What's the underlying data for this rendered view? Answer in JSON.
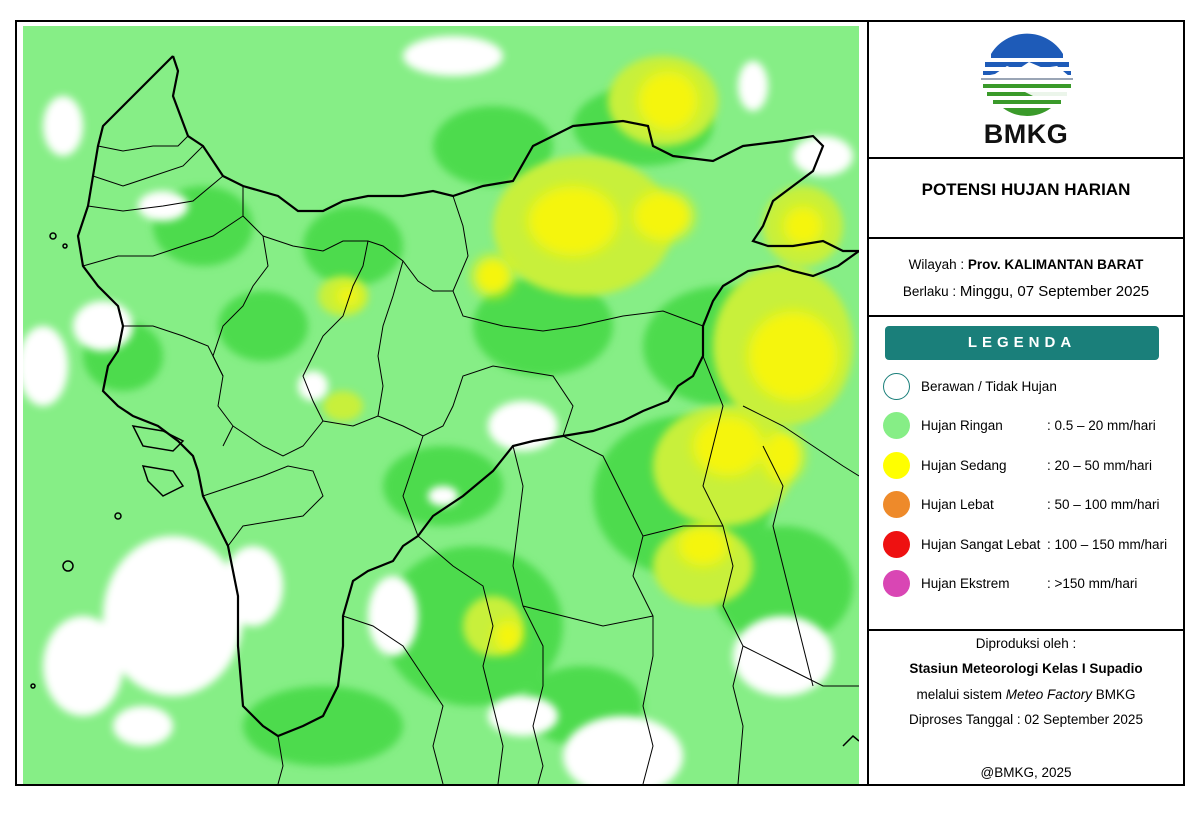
{
  "header": {
    "logo_text": "BMKG",
    "title": "POTENSI HUJAN HARIAN"
  },
  "info": {
    "wilayah_label": "Wilayah : ",
    "wilayah_value": "Prov. KALIMANTAN BARAT",
    "berlaku_label": "Berlaku : ",
    "berlaku_value": "Minggu, 07 September 2025"
  },
  "legend": {
    "title": "LEGENDA",
    "items": [
      {
        "label": "Berawan / Tidak Hujan",
        "range": "",
        "color": "#ffffff"
      },
      {
        "label": "Hujan Ringan",
        "range": ": 0.5 – 20 mm/hari",
        "color": "#86ee86"
      },
      {
        "label": "Hujan Sedang",
        "range": ": 20 – 50 mm/hari",
        "color": "#ffff00"
      },
      {
        "label": "Hujan Lebat",
        "range": ": 50 – 100 mm/hari",
        "color": "#ee8a2a"
      },
      {
        "label": "Hujan Sangat Lebat",
        "range": ": 100 – 150 mm/hari",
        "color": "#ee1111"
      },
      {
        "label": "Hujan Ekstrem",
        "range": ": >150 mm/hari",
        "color": "#d946b4"
      }
    ]
  },
  "credits": {
    "produced_by": "Diproduksi oleh :",
    "station": "Stasiun Meteorologi Kelas I Supadio",
    "system_prefix": "melalui sistem ",
    "system_name": "Meteo Factory",
    "system_suffix": " BMKG",
    "processed": "Diproses Tanggal : 02 September 2025",
    "copyright": "@BMKG, 2025"
  },
  "colors": {
    "light_rain": "#86ee86",
    "light_rain_dark": "#3fd63f",
    "moderate_rain": "#f5f50a",
    "accent": "#1a7f7a"
  }
}
